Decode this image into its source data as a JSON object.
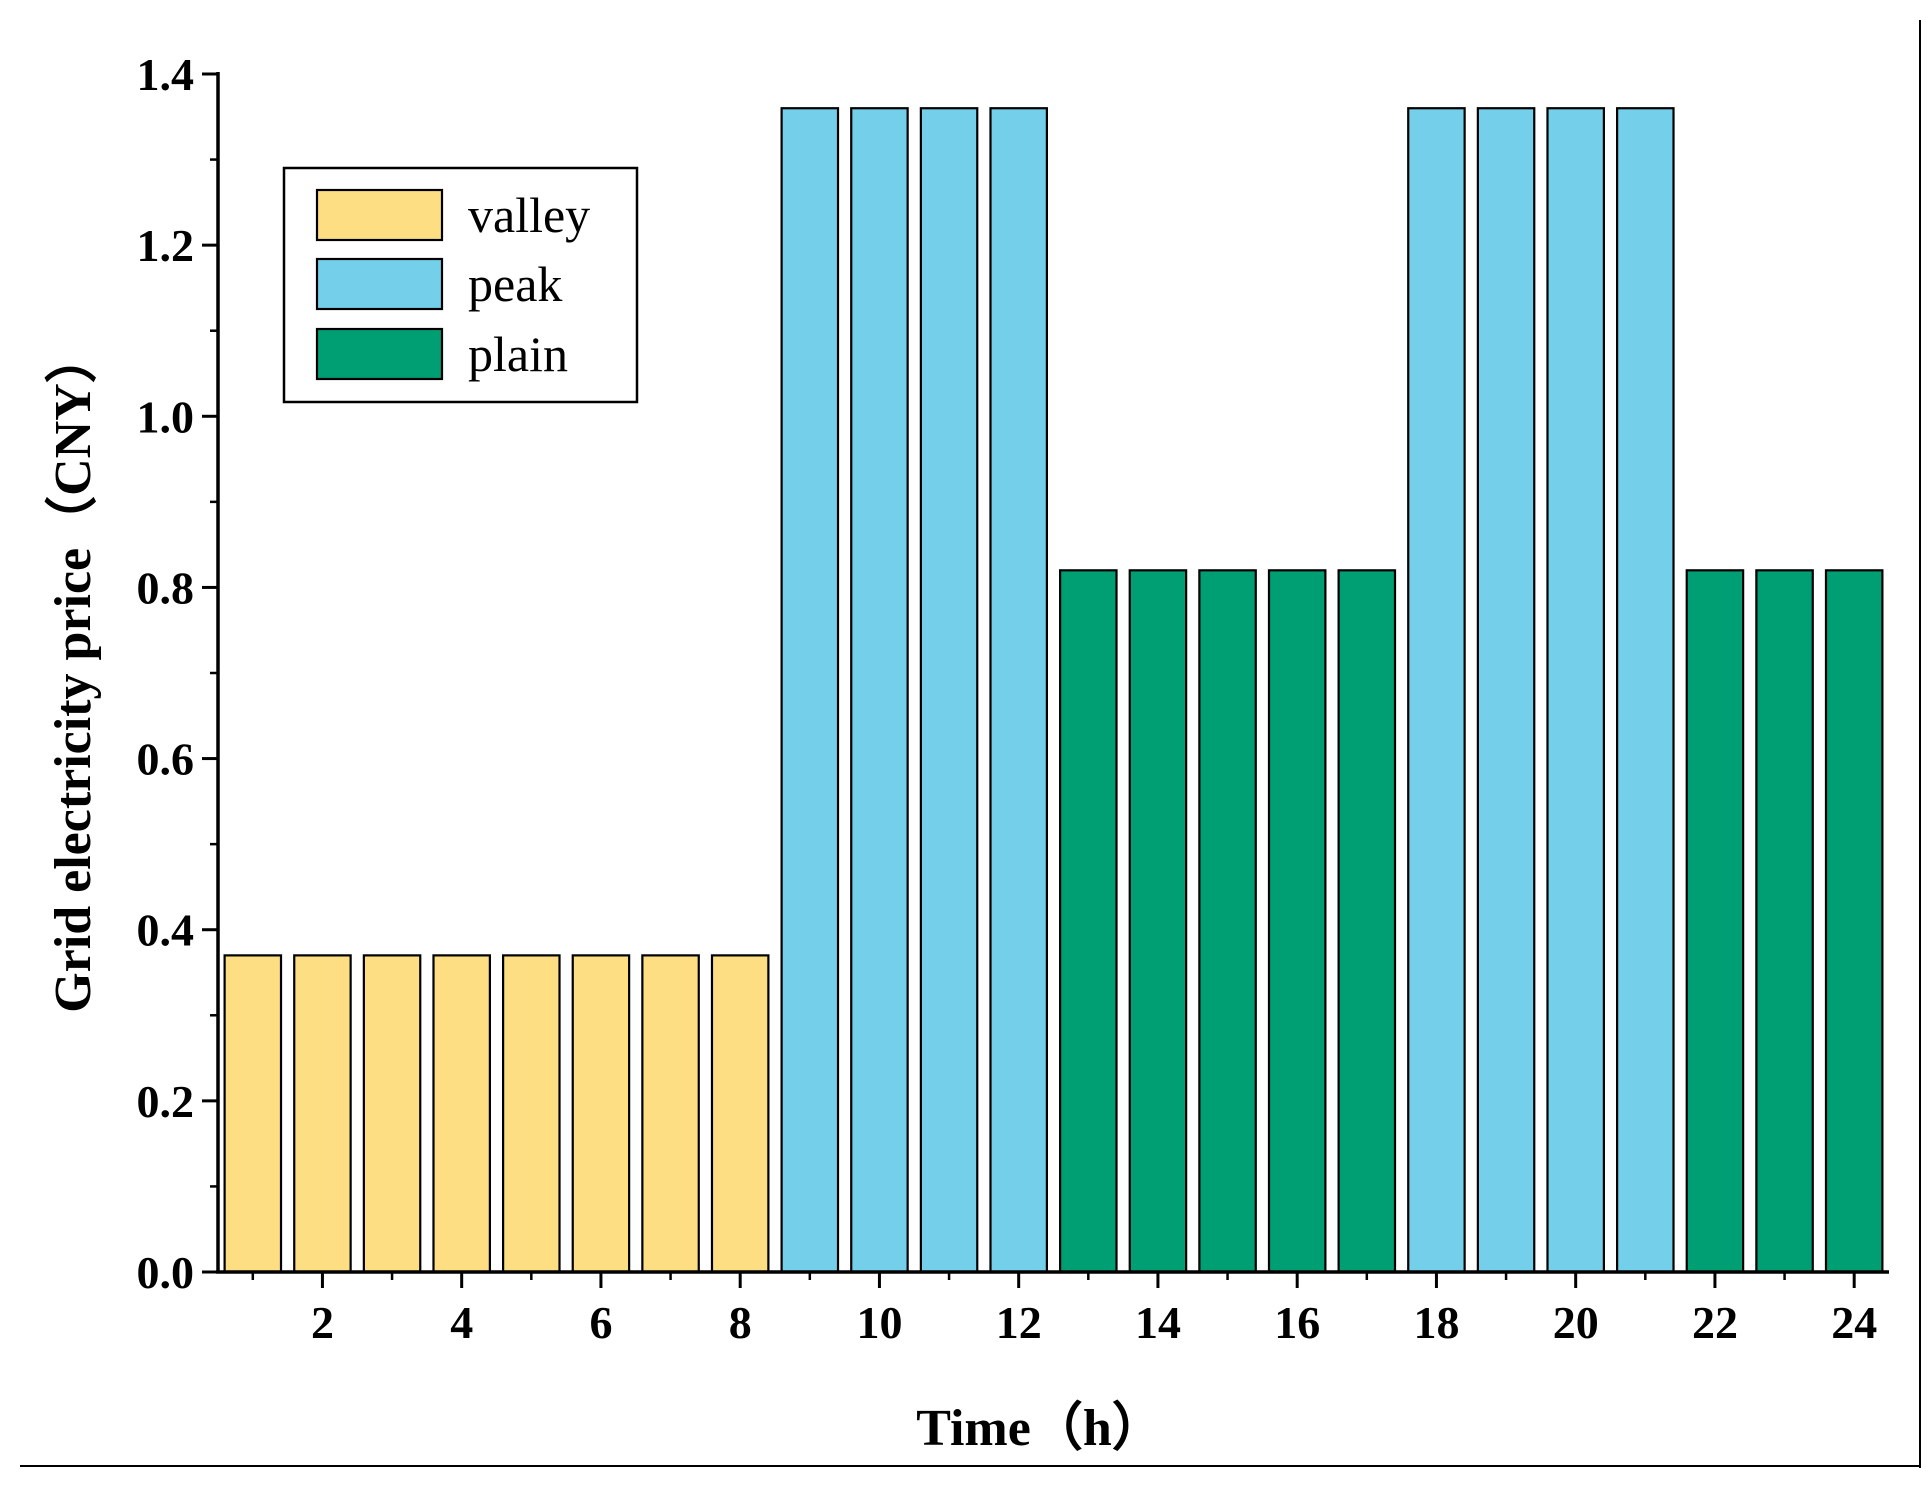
{
  "chart_data": {
    "type": "bar",
    "title": "",
    "xlabel": "Time（h）",
    "ylabel": "Grid electricity price（CNY）",
    "ylim": [
      0,
      1.4
    ],
    "xlim": [
      0.5,
      24.5
    ],
    "y_ticks": [
      "0.0",
      "0.2",
      "0.4",
      "0.6",
      "0.8",
      "1.0",
      "1.2",
      "1.4"
    ],
    "x_ticks": [
      "2",
      "4",
      "6",
      "8",
      "10",
      "12",
      "14",
      "16",
      "18",
      "20",
      "22",
      "24"
    ],
    "hours": [
      1,
      2,
      3,
      4,
      5,
      6,
      7,
      8,
      9,
      10,
      11,
      12,
      13,
      14,
      15,
      16,
      17,
      18,
      19,
      20,
      21,
      22,
      23,
      24
    ],
    "values": [
      0.37,
      0.37,
      0.37,
      0.37,
      0.37,
      0.37,
      0.37,
      0.37,
      1.36,
      1.36,
      1.36,
      1.36,
      0.82,
      0.82,
      0.82,
      0.82,
      0.82,
      1.36,
      1.36,
      1.36,
      1.36,
      0.82,
      0.82,
      0.82
    ],
    "period": [
      "valley",
      "valley",
      "valley",
      "valley",
      "valley",
      "valley",
      "valley",
      "valley",
      "peak",
      "peak",
      "peak",
      "peak",
      "plain",
      "plain",
      "plain",
      "plain",
      "plain",
      "peak",
      "peak",
      "peak",
      "peak",
      "plain",
      "plain",
      "plain"
    ],
    "legend": [
      {
        "key": "valley",
        "label": "valley",
        "color": "#FDDE83"
      },
      {
        "key": "peak",
        "label": "peak",
        "color": "#74D0EA"
      },
      {
        "key": "plain",
        "label": "plain",
        "color": "#009E73"
      }
    ],
    "legend_position": "top-left"
  }
}
